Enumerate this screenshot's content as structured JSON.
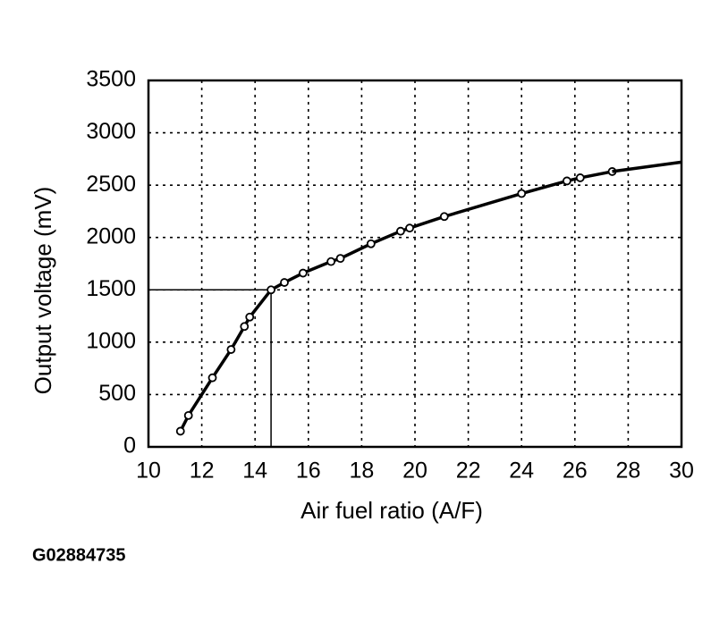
{
  "chart_data": {
    "type": "line",
    "x_label": "Air fuel ratio (A/F)",
    "y_label": "Output voltage (mV)",
    "figure_id": "G02884735",
    "xlim": [
      10,
      30
    ],
    "xticks": [
      10,
      12,
      14,
      16,
      18,
      20,
      22,
      24,
      26,
      28,
      30
    ],
    "ylim": [
      0,
      3500
    ],
    "yticks": [
      0,
      500,
      1000,
      1500,
      2000,
      2500,
      3000,
      3500
    ],
    "grid": true,
    "reference": {
      "x": 14.6,
      "y": 1500
    },
    "series": [
      {
        "color": "#000000",
        "marker": true,
        "x": [
          11.2,
          11.5,
          12.4,
          13.1,
          13.6,
          13.8,
          14.6,
          15.1,
          15.8,
          16.85,
          17.2,
          18.35,
          19.46,
          19.8,
          21.1,
          24,
          25.7,
          26.2,
          27.4
        ],
        "values": [
          150,
          300,
          660,
          930,
          1150,
          1240,
          1500,
          1570,
          1660,
          1770,
          1800,
          1940,
          2060,
          2090,
          2200,
          2420,
          2540,
          2570,
          2630
        ]
      },
      {
        "color": "#000000",
        "marker": false,
        "x": [
          27.4,
          30
        ],
        "values": [
          2630,
          2720
        ]
      }
    ]
  }
}
